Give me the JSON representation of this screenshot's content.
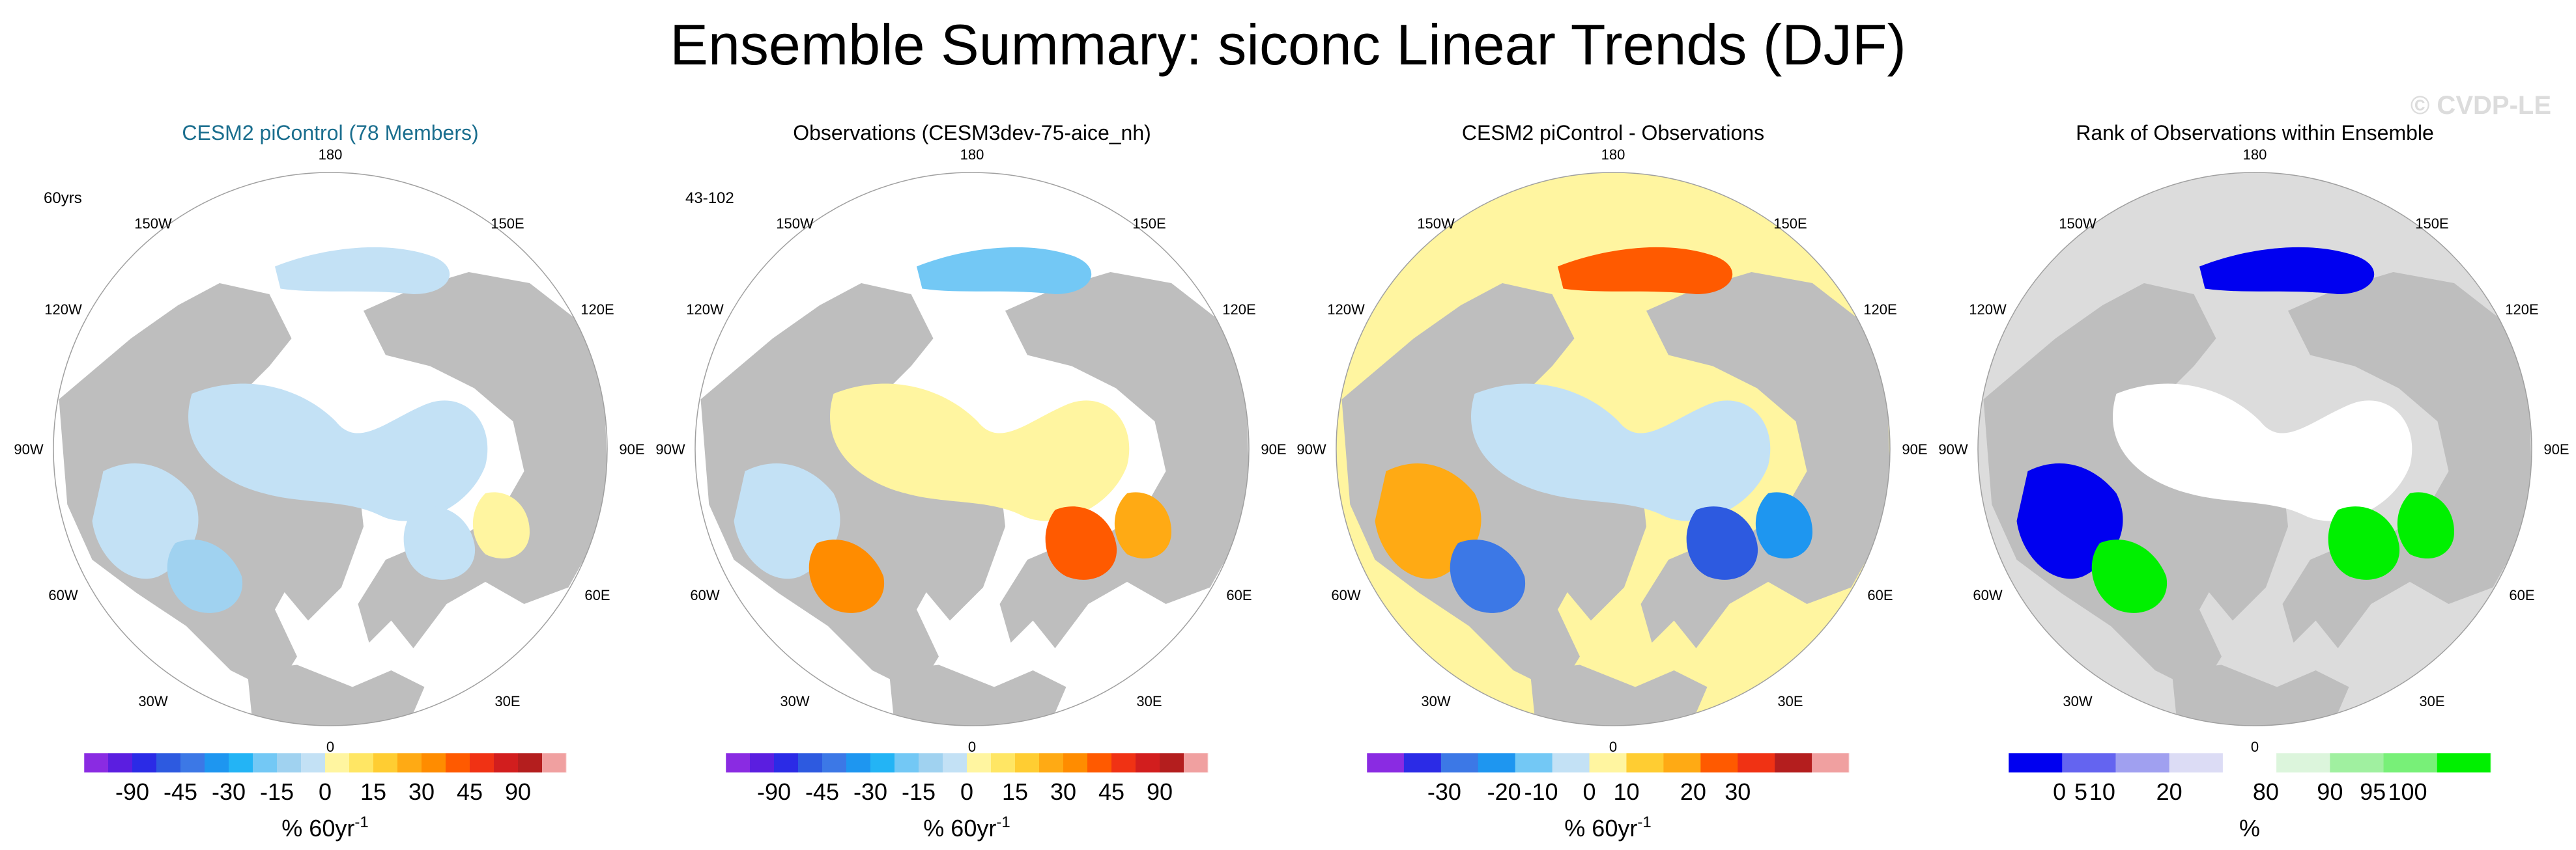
{
  "title": "Ensemble Summary: siconc Linear Trends (DJF)",
  "watermark": "© CVDP-LE",
  "colors": {
    "land": "#bebebe",
    "ocean": "#ffffff",
    "title_blue": "#1a6e8e",
    "trend_scale": [
      "#8a2be2",
      "#5b1ee0",
      "#2b2be6",
      "#2d5ae0",
      "#3c78e6",
      "#1e96f0",
      "#23b4f5",
      "#73c8f5",
      "#a0d2f0",
      "#c3e1f5",
      "#fff5a0",
      "#ffe664",
      "#ffcd32",
      "#ffaa14",
      "#ff8c00",
      "#ff5a00",
      "#f03214",
      "#d21e1e",
      "#b41e1e",
      "#f0a0a0"
    ],
    "diff_scale": [
      "#8a2be2",
      "#2b2be6",
      "#3c78e6",
      "#1e96f0",
      "#73c8f5",
      "#c3e1f5",
      "#fff5a0",
      "#ffcd32",
      "#ffaa14",
      "#ff5a00",
      "#f03214",
      "#b41e1e",
      "#f0a0a0"
    ],
    "rank_scale": [
      "#0000f0",
      "#6464f0",
      "#a0a0f0",
      "#dcdcf5",
      "#ffffff",
      "#dcf5dc",
      "#a0f0a0",
      "#78f078",
      "#00f000"
    ]
  },
  "panels": [
    {
      "title": "CESM2 piControl (78 Members)",
      "title_color": "#1a6e8e",
      "corner_label": "60yrs",
      "bar_labels": [
        "-90",
        "-45",
        "-30",
        "-15",
        "0",
        "15",
        "30",
        "45",
        "90"
      ],
      "units": "% 60yr",
      "units_sup": "-1",
      "scale": "trend"
    },
    {
      "title": "Observations (CESM3dev-75-aice_nh)",
      "title_color": "#000000",
      "corner_label": "43-102",
      "bar_labels": [
        "-90",
        "-45",
        "-30",
        "-15",
        "0",
        "15",
        "30",
        "45",
        "90"
      ],
      "units": "% 60yr",
      "units_sup": "-1",
      "scale": "trend"
    },
    {
      "title": "CESM2 piControl - Observations",
      "title_color": "#000000",
      "corner_label": "",
      "bar_labels": [
        "-30",
        "-20",
        "-10",
        "0",
        "10",
        "20",
        "30"
      ],
      "units": "% 60yr",
      "units_sup": "-1",
      "scale": "diff"
    },
    {
      "title": "Rank of Observations within Ensemble",
      "title_color": "#000000",
      "corner_label": "",
      "bar_labels": [
        "0",
        "5",
        "10",
        "20",
        "80",
        "90",
        "95",
        "100"
      ],
      "units": "%",
      "units_sup": "",
      "scale": "rank"
    }
  ],
  "longitude_labels": {
    "top": "180",
    "top_left": "150W",
    "top_right": "150E",
    "upper_left": "120W",
    "upper_right": "120E",
    "left": "90W",
    "right": "90E",
    "lower_left": "60W",
    "lower_right": "60E",
    "bottom_left": "30W",
    "bottom_right": "30E",
    "bottom": "0"
  }
}
